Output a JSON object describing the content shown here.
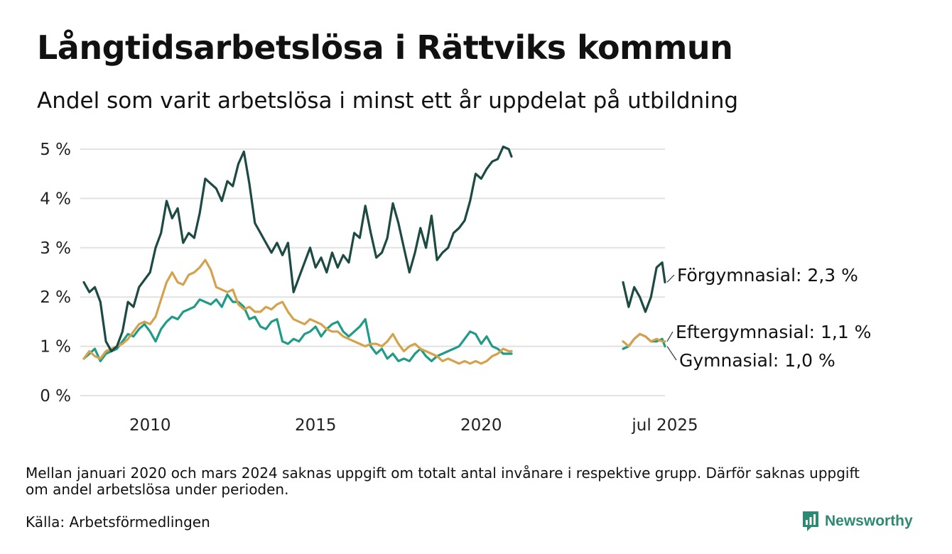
{
  "title": "Långtidsarbetslösa i Rättviks kommun",
  "subtitle": "Andel som varit arbetslösa i minst ett år uppdelat på utbildning",
  "footnote": "Mellan januari 2020 och mars 2024 saknas uppgift om totalt antal invånare i respektive grupp. Därför saknas uppgift om andel arbetslösa under perioden.",
  "source": "Källa: Arbetsförmedlingen",
  "brand": "Newsworthy",
  "colors": {
    "forgymnasial": "#1d4a43",
    "eftergymnasial": "#d4a24c",
    "gymnasial": "#1f9b87",
    "grid": "#e2e2e2",
    "brand": "#2d8a72"
  },
  "chart_data": {
    "type": "line",
    "title": "Långtidsarbetslösa i Rättviks kommun",
    "subtitle": "Andel som varit arbetslösa i minst ett år uppdelat på utbildning",
    "xlabel": "",
    "ylabel": "",
    "ylim": [
      0,
      5
    ],
    "y_ticks": [
      {
        "value": 0,
        "label": "0 %"
      },
      {
        "value": 1,
        "label": "1 %"
      },
      {
        "value": 2,
        "label": "2 %"
      },
      {
        "value": 3,
        "label": "3 %"
      },
      {
        "value": 4,
        "label": "4 %"
      },
      {
        "value": 5,
        "label": "5 %"
      }
    ],
    "x_ticks": [
      {
        "date": "2010-01",
        "label": "2010"
      },
      {
        "date": "2015-01",
        "label": "2015"
      },
      {
        "date": "2020-01",
        "label": "2020"
      },
      {
        "date": "2025-07",
        "label": "jul 2025"
      }
    ],
    "grid": true,
    "legend": "direct labels at right end of lines",
    "segments": [
      {
        "start": "2008-01",
        "end": "2020-12"
      },
      {
        "start": "2024-04",
        "end": "2025-07"
      }
    ],
    "series": [
      {
        "name": "Förgymnasial",
        "end_label": "Förgymnasial: 2,3 %",
        "color": "#1d4a43",
        "points": [
          [
            "2008-01",
            2.3
          ],
          [
            "2008-03",
            2.1
          ],
          [
            "2008-05",
            2.2
          ],
          [
            "2008-07",
            1.9
          ],
          [
            "2008-09",
            1.1
          ],
          [
            "2008-11",
            0.9
          ],
          [
            "2009-01",
            1.0
          ],
          [
            "2009-03",
            1.3
          ],
          [
            "2009-05",
            1.9
          ],
          [
            "2009-07",
            1.8
          ],
          [
            "2009-09",
            2.2
          ],
          [
            "2009-11",
            2.35
          ],
          [
            "2010-01",
            2.5
          ],
          [
            "2010-03",
            3.0
          ],
          [
            "2010-05",
            3.3
          ],
          [
            "2010-07",
            3.95
          ],
          [
            "2010-09",
            3.6
          ],
          [
            "2010-11",
            3.8
          ],
          [
            "2011-01",
            3.1
          ],
          [
            "2011-03",
            3.3
          ],
          [
            "2011-05",
            3.2
          ],
          [
            "2011-07",
            3.7
          ],
          [
            "2011-09",
            4.4
          ],
          [
            "2011-11",
            4.3
          ],
          [
            "2012-01",
            4.2
          ],
          [
            "2012-03",
            3.95
          ],
          [
            "2012-05",
            4.35
          ],
          [
            "2012-07",
            4.25
          ],
          [
            "2012-09",
            4.7
          ],
          [
            "2012-11",
            4.95
          ],
          [
            "2013-01",
            4.3
          ],
          [
            "2013-03",
            3.5
          ],
          [
            "2013-05",
            3.3
          ],
          [
            "2013-07",
            3.1
          ],
          [
            "2013-09",
            2.9
          ],
          [
            "2013-11",
            3.1
          ],
          [
            "2014-01",
            2.85
          ],
          [
            "2014-03",
            3.1
          ],
          [
            "2014-05",
            2.1
          ],
          [
            "2014-07",
            2.4
          ],
          [
            "2014-09",
            2.7
          ],
          [
            "2014-11",
            3.0
          ],
          [
            "2015-01",
            2.6
          ],
          [
            "2015-03",
            2.8
          ],
          [
            "2015-05",
            2.5
          ],
          [
            "2015-07",
            2.9
          ],
          [
            "2015-09",
            2.6
          ],
          [
            "2015-11",
            2.85
          ],
          [
            "2016-01",
            2.7
          ],
          [
            "2016-03",
            3.3
          ],
          [
            "2016-05",
            3.2
          ],
          [
            "2016-07",
            3.85
          ],
          [
            "2016-09",
            3.3
          ],
          [
            "2016-11",
            2.8
          ],
          [
            "2017-01",
            2.9
          ],
          [
            "2017-03",
            3.2
          ],
          [
            "2017-05",
            3.9
          ],
          [
            "2017-07",
            3.5
          ],
          [
            "2017-09",
            3.0
          ],
          [
            "2017-11",
            2.5
          ],
          [
            "2018-01",
            2.9
          ],
          [
            "2018-03",
            3.4
          ],
          [
            "2018-05",
            3.0
          ],
          [
            "2018-07",
            3.65
          ],
          [
            "2018-09",
            2.75
          ],
          [
            "2018-11",
            2.9
          ],
          [
            "2019-01",
            3.0
          ],
          [
            "2019-03",
            3.3
          ],
          [
            "2019-05",
            3.4
          ],
          [
            "2019-07",
            3.55
          ],
          [
            "2019-09",
            3.95
          ],
          [
            "2019-11",
            4.5
          ],
          [
            "2020-01",
            4.4
          ],
          [
            "2020-03",
            4.6
          ],
          [
            "2020-05",
            4.75
          ],
          [
            "2020-07",
            4.8
          ],
          [
            "2020-09",
            5.05
          ],
          [
            "2020-11",
            5.0
          ],
          [
            "2020-12",
            4.85
          ],
          [
            "2024-04",
            2.3
          ],
          [
            "2024-06",
            1.8
          ],
          [
            "2024-08",
            2.2
          ],
          [
            "2024-10",
            2.0
          ],
          [
            "2024-12",
            1.7
          ],
          [
            "2025-02",
            2.0
          ],
          [
            "2025-04",
            2.6
          ],
          [
            "2025-06",
            2.7
          ],
          [
            "2025-07",
            2.3
          ]
        ]
      },
      {
        "name": "Eftergymnasial",
        "end_label": "Eftergymnasial: 1,1 %",
        "color": "#d4a24c",
        "points": [
          [
            "2008-01",
            0.75
          ],
          [
            "2008-03",
            0.9
          ],
          [
            "2008-05",
            0.8
          ],
          [
            "2008-07",
            0.75
          ],
          [
            "2008-09",
            0.9
          ],
          [
            "2008-11",
            0.95
          ],
          [
            "2009-01",
            1.0
          ],
          [
            "2009-03",
            1.05
          ],
          [
            "2009-05",
            1.15
          ],
          [
            "2009-07",
            1.3
          ],
          [
            "2009-09",
            1.45
          ],
          [
            "2009-11",
            1.5
          ],
          [
            "2010-01",
            1.45
          ],
          [
            "2010-03",
            1.6
          ],
          [
            "2010-05",
            1.95
          ],
          [
            "2010-07",
            2.3
          ],
          [
            "2010-09",
            2.5
          ],
          [
            "2010-11",
            2.3
          ],
          [
            "2011-01",
            2.25
          ],
          [
            "2011-03",
            2.45
          ],
          [
            "2011-05",
            2.5
          ],
          [
            "2011-07",
            2.6
          ],
          [
            "2011-09",
            2.75
          ],
          [
            "2011-11",
            2.55
          ],
          [
            "2012-01",
            2.2
          ],
          [
            "2012-03",
            2.15
          ],
          [
            "2012-05",
            2.1
          ],
          [
            "2012-07",
            2.15
          ],
          [
            "2012-09",
            1.85
          ],
          [
            "2012-11",
            1.75
          ],
          [
            "2013-01",
            1.8
          ],
          [
            "2013-03",
            1.7
          ],
          [
            "2013-05",
            1.7
          ],
          [
            "2013-07",
            1.8
          ],
          [
            "2013-09",
            1.75
          ],
          [
            "2013-11",
            1.85
          ],
          [
            "2014-01",
            1.9
          ],
          [
            "2014-03",
            1.7
          ],
          [
            "2014-05",
            1.55
          ],
          [
            "2014-07",
            1.5
          ],
          [
            "2014-09",
            1.45
          ],
          [
            "2014-11",
            1.55
          ],
          [
            "2015-01",
            1.5
          ],
          [
            "2015-03",
            1.45
          ],
          [
            "2015-05",
            1.35
          ],
          [
            "2015-07",
            1.3
          ],
          [
            "2015-09",
            1.3
          ],
          [
            "2015-11",
            1.2
          ],
          [
            "2016-01",
            1.15
          ],
          [
            "2016-03",
            1.1
          ],
          [
            "2016-05",
            1.05
          ],
          [
            "2016-07",
            1.0
          ],
          [
            "2016-09",
            1.05
          ],
          [
            "2016-11",
            1.05
          ],
          [
            "2017-01",
            1.0
          ],
          [
            "2017-03",
            1.1
          ],
          [
            "2017-05",
            1.25
          ],
          [
            "2017-07",
            1.05
          ],
          [
            "2017-09",
            0.9
          ],
          [
            "2017-11",
            1.0
          ],
          [
            "2018-01",
            1.05
          ],
          [
            "2018-03",
            0.95
          ],
          [
            "2018-05",
            0.9
          ],
          [
            "2018-07",
            0.85
          ],
          [
            "2018-09",
            0.8
          ],
          [
            "2018-11",
            0.7
          ],
          [
            "2019-01",
            0.75
          ],
          [
            "2019-03",
            0.7
          ],
          [
            "2019-05",
            0.65
          ],
          [
            "2019-07",
            0.7
          ],
          [
            "2019-09",
            0.65
          ],
          [
            "2019-11",
            0.7
          ],
          [
            "2020-01",
            0.65
          ],
          [
            "2020-03",
            0.7
          ],
          [
            "2020-05",
            0.8
          ],
          [
            "2020-07",
            0.85
          ],
          [
            "2020-09",
            0.95
          ],
          [
            "2020-11",
            0.9
          ],
          [
            "2020-12",
            0.9
          ],
          [
            "2024-04",
            1.1
          ],
          [
            "2024-06",
            1.0
          ],
          [
            "2024-08",
            1.15
          ],
          [
            "2024-10",
            1.25
          ],
          [
            "2024-12",
            1.2
          ],
          [
            "2025-02",
            1.1
          ],
          [
            "2025-04",
            1.15
          ],
          [
            "2025-06",
            1.1
          ],
          [
            "2025-07",
            1.1
          ]
        ]
      },
      {
        "name": "Gymnasial",
        "end_label": "Gymnasial: 1,0 %",
        "color": "#1f9b87",
        "points": [
          [
            "2008-01",
            0.75
          ],
          [
            "2008-03",
            0.85
          ],
          [
            "2008-05",
            0.95
          ],
          [
            "2008-07",
            0.7
          ],
          [
            "2008-09",
            0.85
          ],
          [
            "2008-11",
            0.9
          ],
          [
            "2009-01",
            0.95
          ],
          [
            "2009-03",
            1.1
          ],
          [
            "2009-05",
            1.25
          ],
          [
            "2009-07",
            1.2
          ],
          [
            "2009-09",
            1.35
          ],
          [
            "2009-11",
            1.45
          ],
          [
            "2010-01",
            1.3
          ],
          [
            "2010-03",
            1.1
          ],
          [
            "2010-05",
            1.35
          ],
          [
            "2010-07",
            1.5
          ],
          [
            "2010-09",
            1.6
          ],
          [
            "2010-11",
            1.55
          ],
          [
            "2011-01",
            1.7
          ],
          [
            "2011-03",
            1.75
          ],
          [
            "2011-05",
            1.8
          ],
          [
            "2011-07",
            1.95
          ],
          [
            "2011-09",
            1.9
          ],
          [
            "2011-11",
            1.85
          ],
          [
            "2012-01",
            1.95
          ],
          [
            "2012-03",
            1.8
          ],
          [
            "2012-05",
            2.05
          ],
          [
            "2012-07",
            1.9
          ],
          [
            "2012-09",
            1.9
          ],
          [
            "2012-11",
            1.8
          ],
          [
            "2013-01",
            1.55
          ],
          [
            "2013-03",
            1.6
          ],
          [
            "2013-05",
            1.4
          ],
          [
            "2013-07",
            1.35
          ],
          [
            "2013-09",
            1.5
          ],
          [
            "2013-11",
            1.55
          ],
          [
            "2014-01",
            1.1
          ],
          [
            "2014-03",
            1.05
          ],
          [
            "2014-05",
            1.15
          ],
          [
            "2014-07",
            1.1
          ],
          [
            "2014-09",
            1.25
          ],
          [
            "2014-11",
            1.3
          ],
          [
            "2015-01",
            1.4
          ],
          [
            "2015-03",
            1.2
          ],
          [
            "2015-05",
            1.35
          ],
          [
            "2015-07",
            1.45
          ],
          [
            "2015-09",
            1.5
          ],
          [
            "2015-11",
            1.3
          ],
          [
            "2016-01",
            1.2
          ],
          [
            "2016-03",
            1.3
          ],
          [
            "2016-05",
            1.4
          ],
          [
            "2016-07",
            1.55
          ],
          [
            "2016-09",
            1.0
          ],
          [
            "2016-11",
            0.85
          ],
          [
            "2017-01",
            0.95
          ],
          [
            "2017-03",
            0.75
          ],
          [
            "2017-05",
            0.85
          ],
          [
            "2017-07",
            0.7
          ],
          [
            "2017-09",
            0.75
          ],
          [
            "2017-11",
            0.7
          ],
          [
            "2018-01",
            0.85
          ],
          [
            "2018-03",
            0.95
          ],
          [
            "2018-05",
            0.8
          ],
          [
            "2018-07",
            0.7
          ],
          [
            "2018-09",
            0.8
          ],
          [
            "2018-11",
            0.85
          ],
          [
            "2019-01",
            0.9
          ],
          [
            "2019-03",
            0.95
          ],
          [
            "2019-05",
            1.0
          ],
          [
            "2019-07",
            1.15
          ],
          [
            "2019-09",
            1.3
          ],
          [
            "2019-11",
            1.25
          ],
          [
            "2020-01",
            1.05
          ],
          [
            "2020-03",
            1.2
          ],
          [
            "2020-05",
            1.0
          ],
          [
            "2020-07",
            0.95
          ],
          [
            "2020-09",
            0.85
          ],
          [
            "2020-11",
            0.85
          ],
          [
            "2020-12",
            0.85
          ],
          [
            "2024-04",
            0.95
          ],
          [
            "2024-06",
            1.0
          ],
          [
            "2024-08",
            1.15
          ],
          [
            "2024-10",
            1.25
          ],
          [
            "2024-12",
            1.2
          ],
          [
            "2025-02",
            1.1
          ],
          [
            "2025-04",
            1.1
          ],
          [
            "2025-06",
            1.15
          ],
          [
            "2025-07",
            1.0
          ]
        ]
      }
    ]
  }
}
